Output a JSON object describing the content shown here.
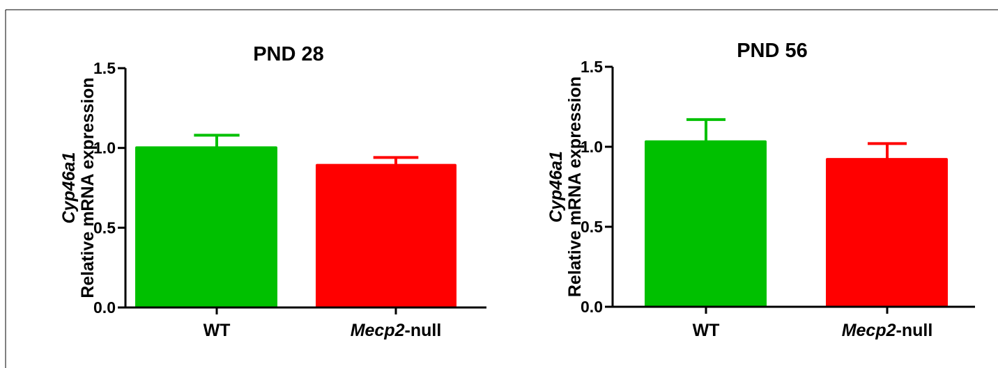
{
  "chart_data": [
    {
      "type": "bar",
      "title": "PND 28",
      "ylabel_gene": "Cyp46a1",
      "ylabel": "Relative mRNA expression",
      "ylim": [
        0,
        1.5
      ],
      "yticks": [
        "0.0",
        "0.5",
        "1.0",
        "1.5"
      ],
      "categories": [
        {
          "italic": "",
          "plain": "WT"
        },
        {
          "italic": "Mecp2",
          "plain": "-null"
        }
      ],
      "values": [
        1.01,
        0.9
      ],
      "errors": [
        0.07,
        0.04
      ],
      "colors": [
        "#00c000",
        "#ff0000"
      ]
    },
    {
      "type": "bar",
      "title": "PND 56",
      "ylabel_gene": "Cyp46a1",
      "ylabel": "Relative mRNA expression",
      "ylim": [
        0,
        1.5
      ],
      "yticks": [
        "0.0",
        "0.5",
        "1.0",
        "1.5"
      ],
      "categories": [
        {
          "italic": "",
          "plain": "WT"
        },
        {
          "italic": "Mecp2",
          "plain": "-null"
        }
      ],
      "values": [
        1.04,
        0.93
      ],
      "errors": [
        0.13,
        0.09
      ],
      "colors": [
        "#00c000",
        "#ff0000"
      ]
    }
  ]
}
